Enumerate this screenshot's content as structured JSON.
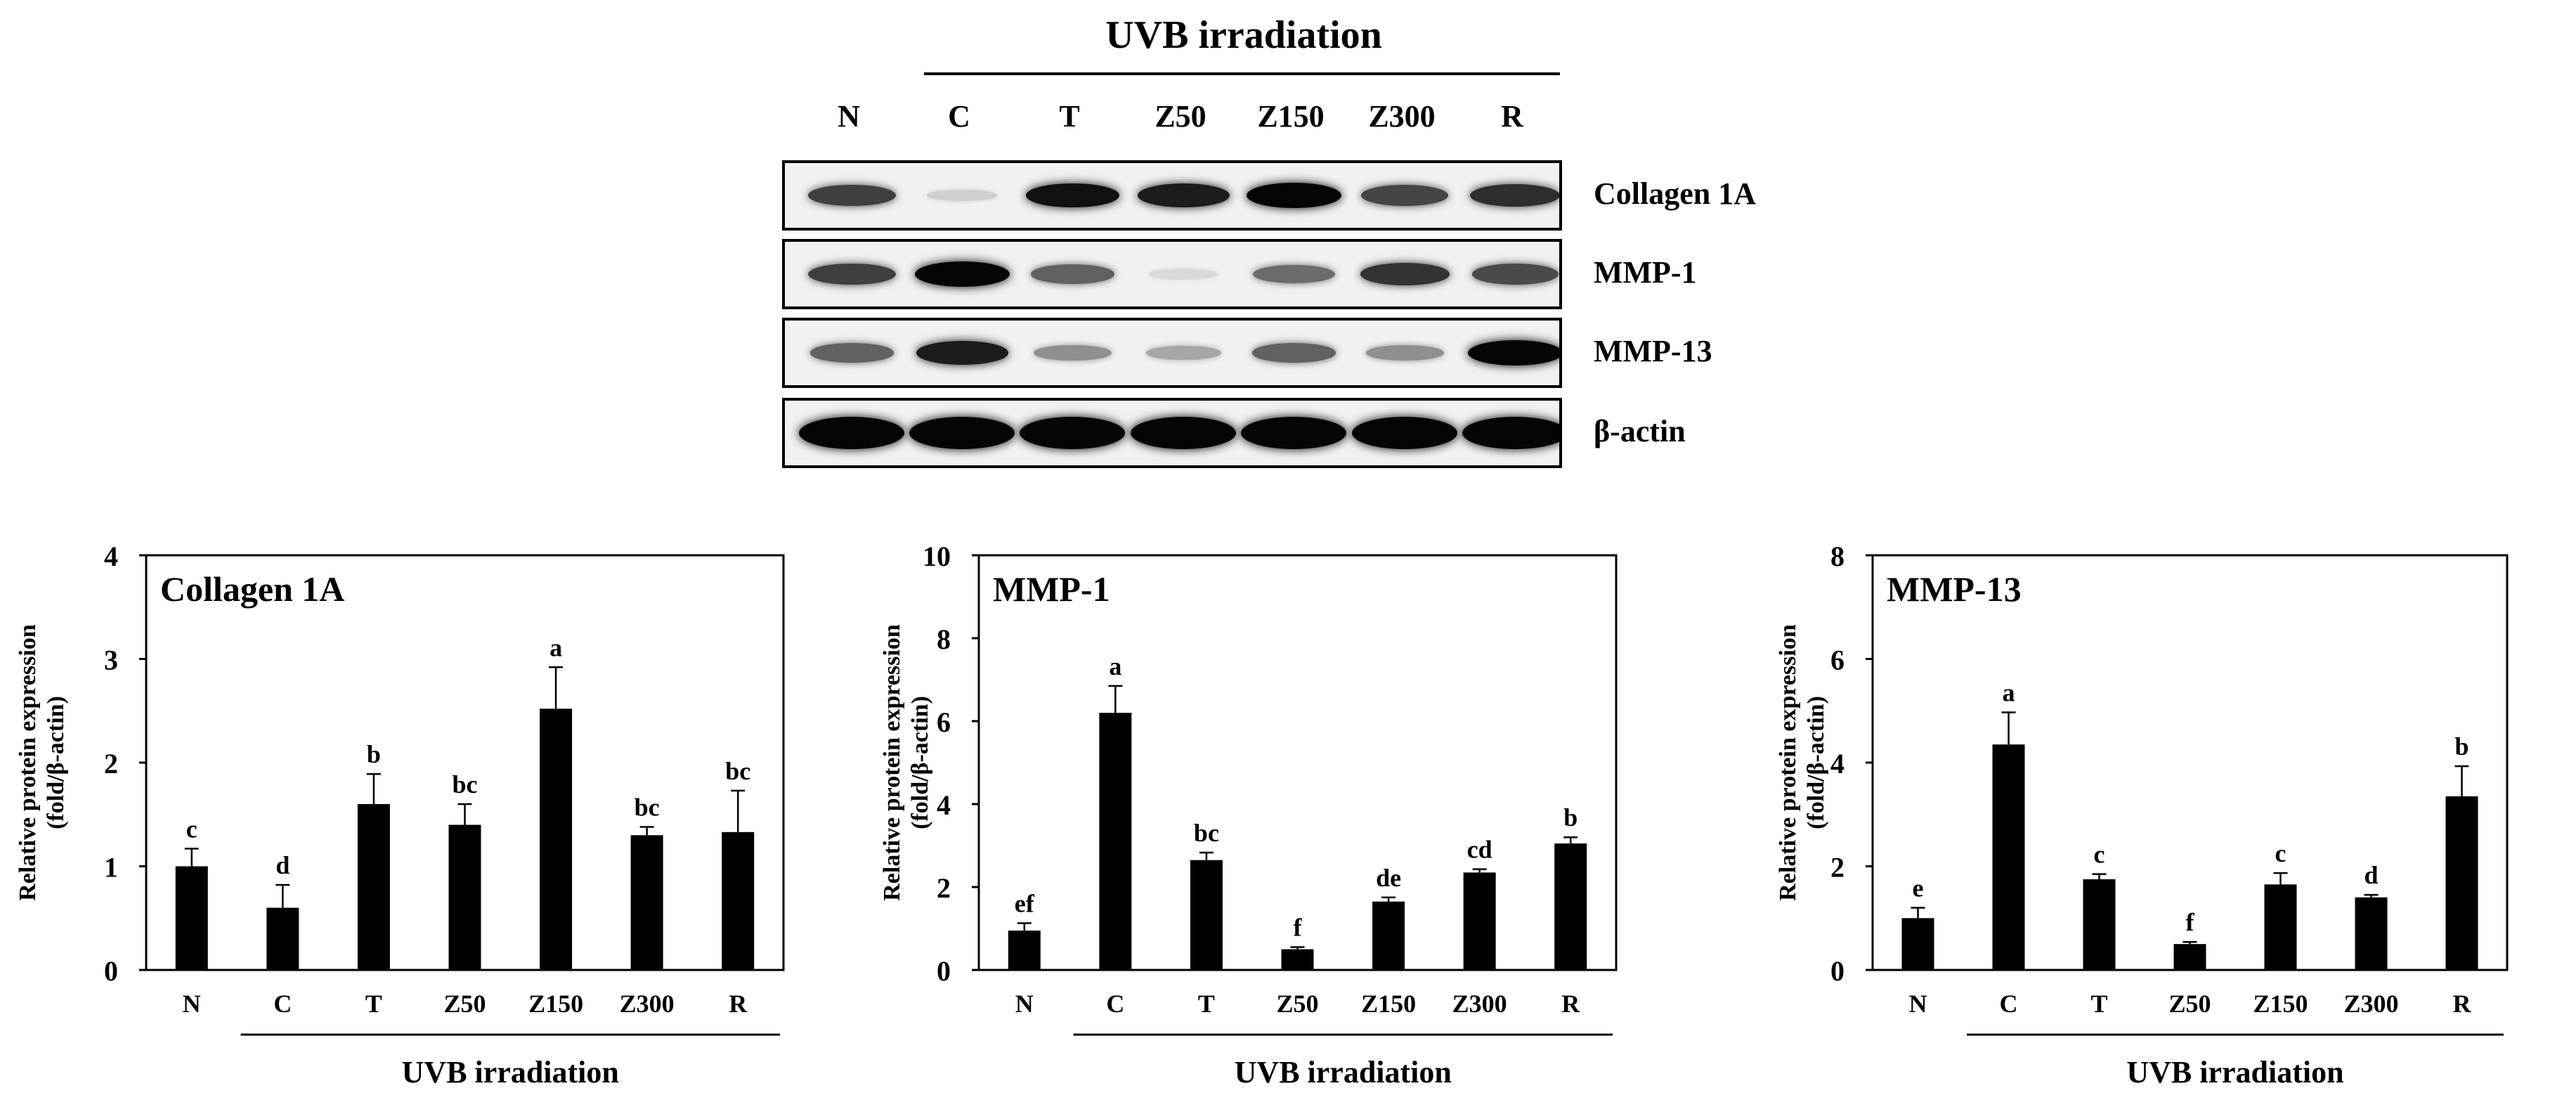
{
  "blot": {
    "title": "UVB irradiation",
    "lanes": [
      "N",
      "C",
      "T",
      "Z50",
      "Z150",
      "Z300",
      "R"
    ],
    "rows": [
      {
        "label": "Collagen 1A",
        "intensity": [
          0.75,
          0.12,
          0.95,
          0.9,
          1.0,
          0.72,
          0.82
        ]
      },
      {
        "label": "MMP-1",
        "intensity": [
          0.75,
          1.0,
          0.6,
          0.08,
          0.55,
          0.8,
          0.7
        ]
      },
      {
        "label": "MMP-13",
        "intensity": [
          0.6,
          0.9,
          0.4,
          0.3,
          0.6,
          0.4,
          1.0
        ]
      },
      {
        "label": "β-actin",
        "intensity": [
          1.0,
          1.0,
          1.0,
          1.0,
          1.0,
          1.0,
          1.0
        ]
      }
    ]
  },
  "chart_data": [
    {
      "type": "bar",
      "title": "Collagen 1A",
      "ylabel_line1": "Relative protein expression",
      "ylabel_line2": "(fold/β-actin)",
      "xlabel": "UVB irradiation",
      "categories": [
        "N",
        "C",
        "T",
        "Z50",
        "Z150",
        "Z300",
        "R"
      ],
      "values": [
        1.0,
        0.6,
        1.6,
        1.4,
        2.52,
        1.3,
        1.33
      ],
      "errors": [
        0.17,
        0.22,
        0.29,
        0.2,
        0.4,
        0.08,
        0.4
      ],
      "letters": [
        "c",
        "d",
        "b",
        "bc",
        "a",
        "bc",
        "bc"
      ],
      "ylim": [
        0,
        4
      ],
      "yticks": [
        "0",
        "1",
        "2",
        "3",
        "4"
      ]
    },
    {
      "type": "bar",
      "title": "MMP-1",
      "ylabel_line1": "Relative protein expression",
      "ylabel_line2": "(fold/β-actin)",
      "xlabel": "UVB irradiation",
      "categories": [
        "N",
        "C",
        "T",
        "Z50",
        "Z150",
        "Z300",
        "R"
      ],
      "values": [
        0.95,
        6.2,
        2.65,
        0.5,
        1.65,
        2.35,
        3.05
      ],
      "errors": [
        0.18,
        0.65,
        0.18,
        0.05,
        0.1,
        0.08,
        0.15
      ],
      "letters": [
        "ef",
        "a",
        "bc",
        "f",
        "de",
        "cd",
        "b"
      ],
      "ylim": [
        0,
        10
      ],
      "yticks": [
        "0",
        "2",
        "4",
        "6",
        "8",
        "10"
      ]
    },
    {
      "type": "bar",
      "title": "MMP-13",
      "ylabel_line1": "Relative protein expression",
      "ylabel_line2": "(fold/β-actin)",
      "xlabel": "UVB irradiation",
      "categories": [
        "N",
        "C",
        "T",
        "Z50",
        "Z150",
        "Z300",
        "R"
      ],
      "values": [
        1.0,
        4.35,
        1.75,
        0.5,
        1.65,
        1.4,
        3.35
      ],
      "errors": [
        0.2,
        0.62,
        0.1,
        0.04,
        0.22,
        0.05,
        0.58
      ],
      "letters": [
        "e",
        "a",
        "c",
        "f",
        "c",
        "d",
        "b"
      ],
      "ylim": [
        0,
        8
      ],
      "yticks": [
        "0",
        "2",
        "4",
        "6",
        "8"
      ]
    }
  ]
}
